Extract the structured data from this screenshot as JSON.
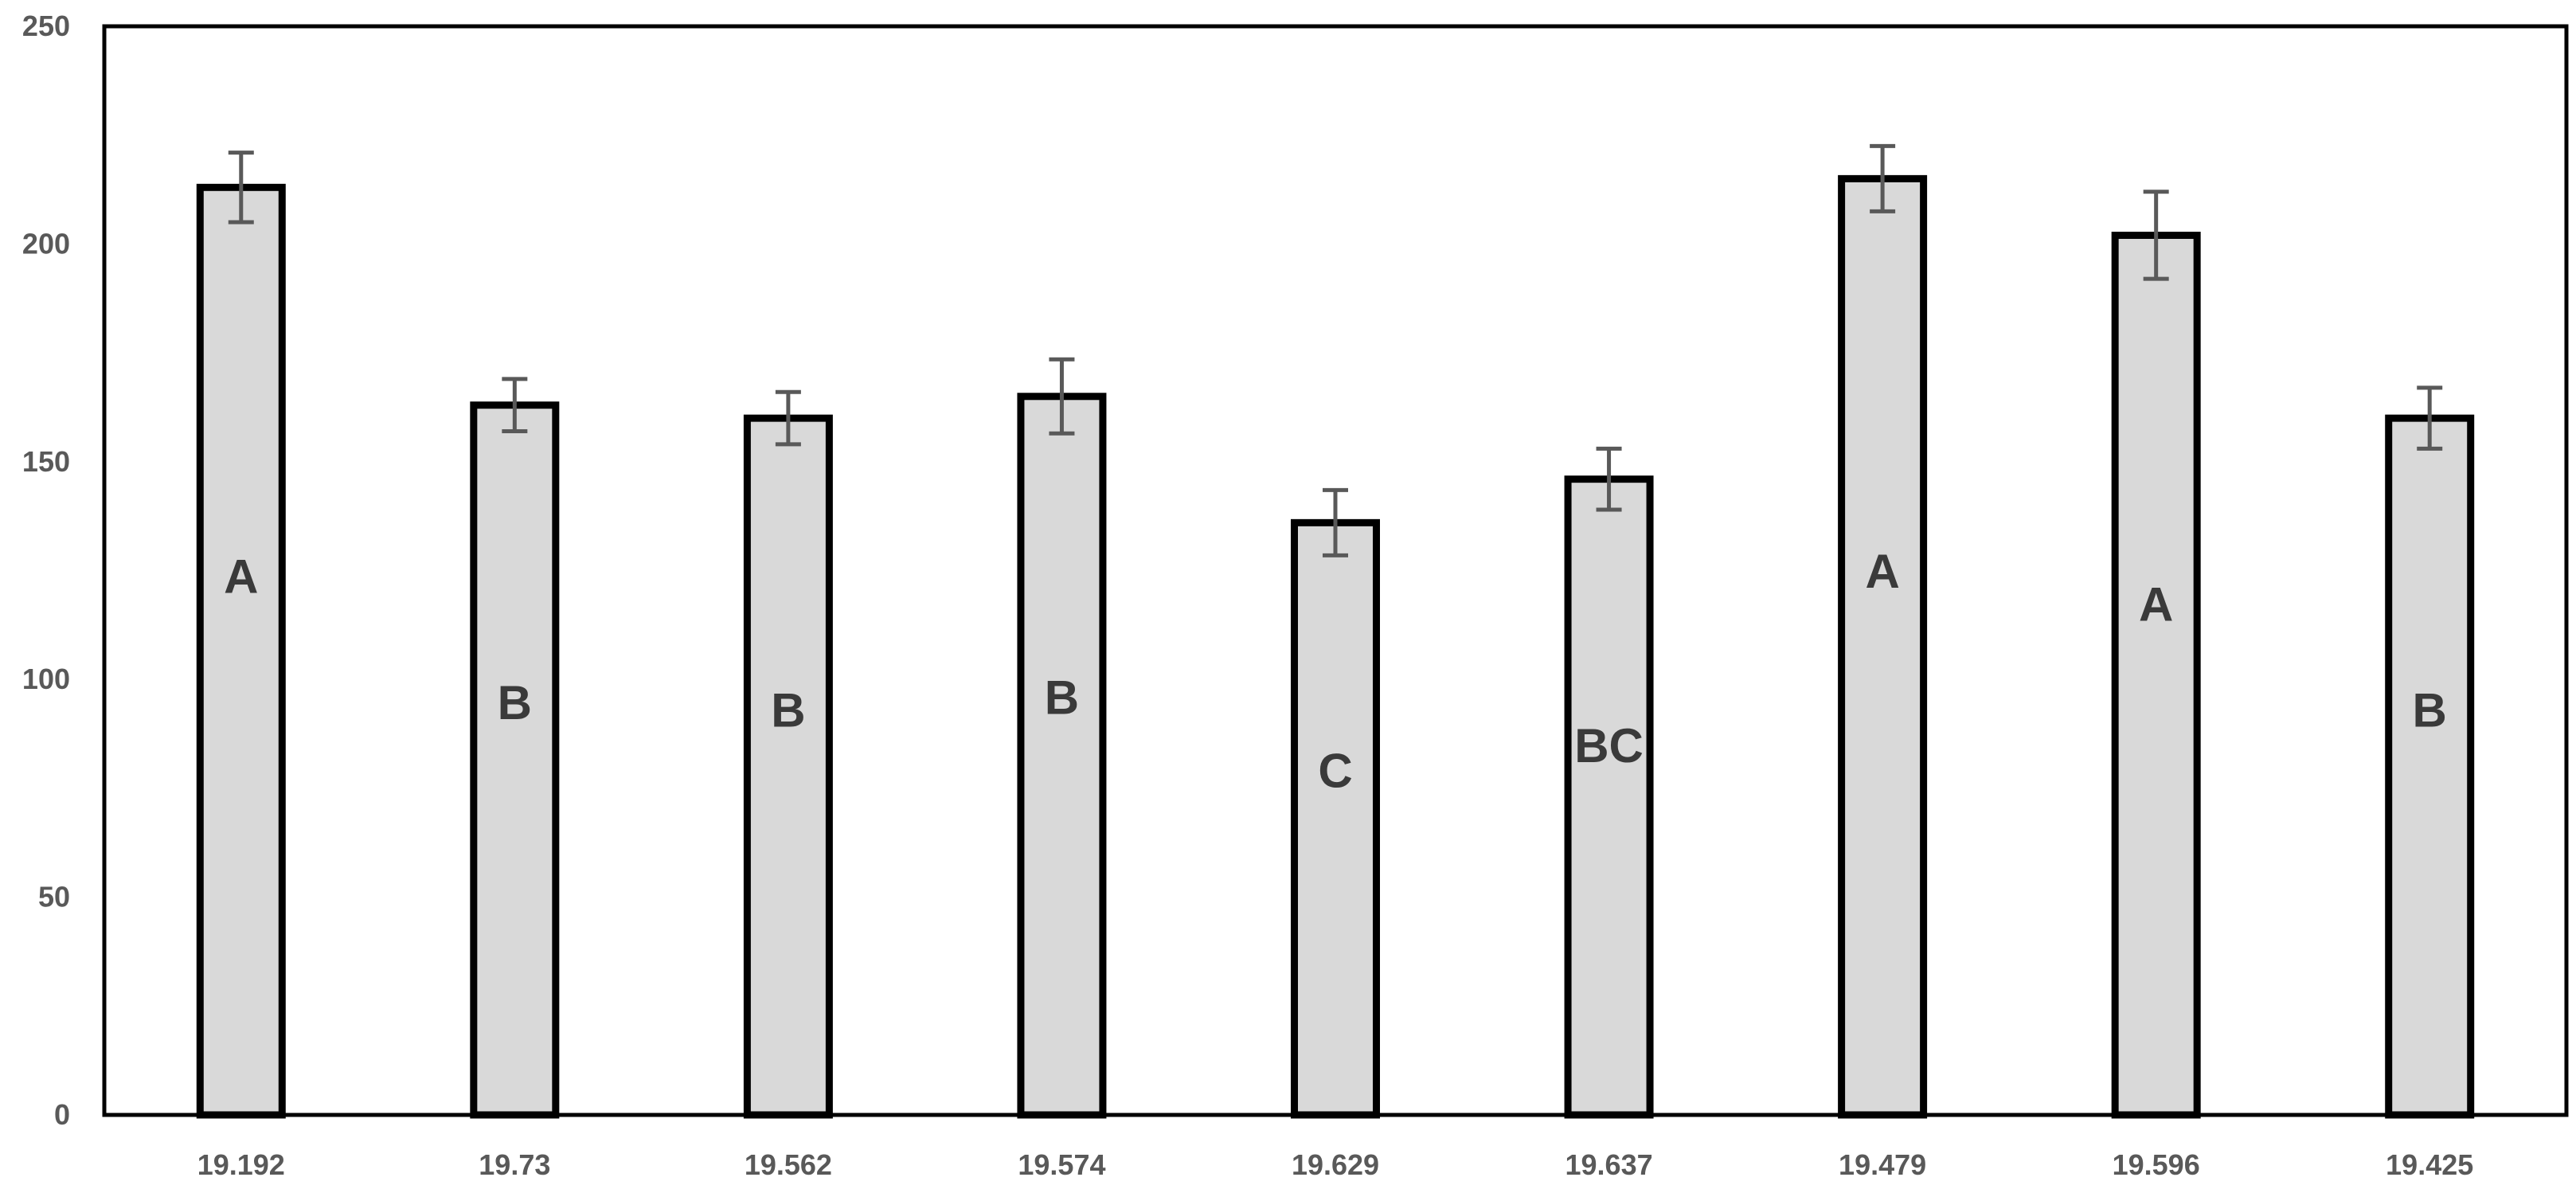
{
  "chart_data": {
    "type": "bar",
    "title": "",
    "xlabel": "",
    "ylabel": "",
    "ylim": [
      0,
      250
    ],
    "yticks": [
      0,
      50,
      100,
      150,
      200,
      250
    ],
    "grid": false,
    "legend": "none",
    "colors": {
      "bar_fill": "#d9d9d9",
      "bar_stroke": "#000000",
      "error_bar": "#595959",
      "frame": "#000000"
    },
    "categories": [
      "19.192",
      "19.73",
      "19.562",
      "19.574",
      "19.629",
      "19.637",
      "19.479",
      "19.596",
      "19.425"
    ],
    "values": [
      213,
      163,
      160,
      165,
      136,
      146,
      215,
      202,
      160
    ],
    "error": [
      8,
      6,
      6,
      8.5,
      7.5,
      7,
      7.5,
      10,
      7
    ],
    "letters": [
      "A",
      "B",
      "B",
      "B",
      "C",
      "BC",
      "A",
      "A",
      "B"
    ]
  }
}
